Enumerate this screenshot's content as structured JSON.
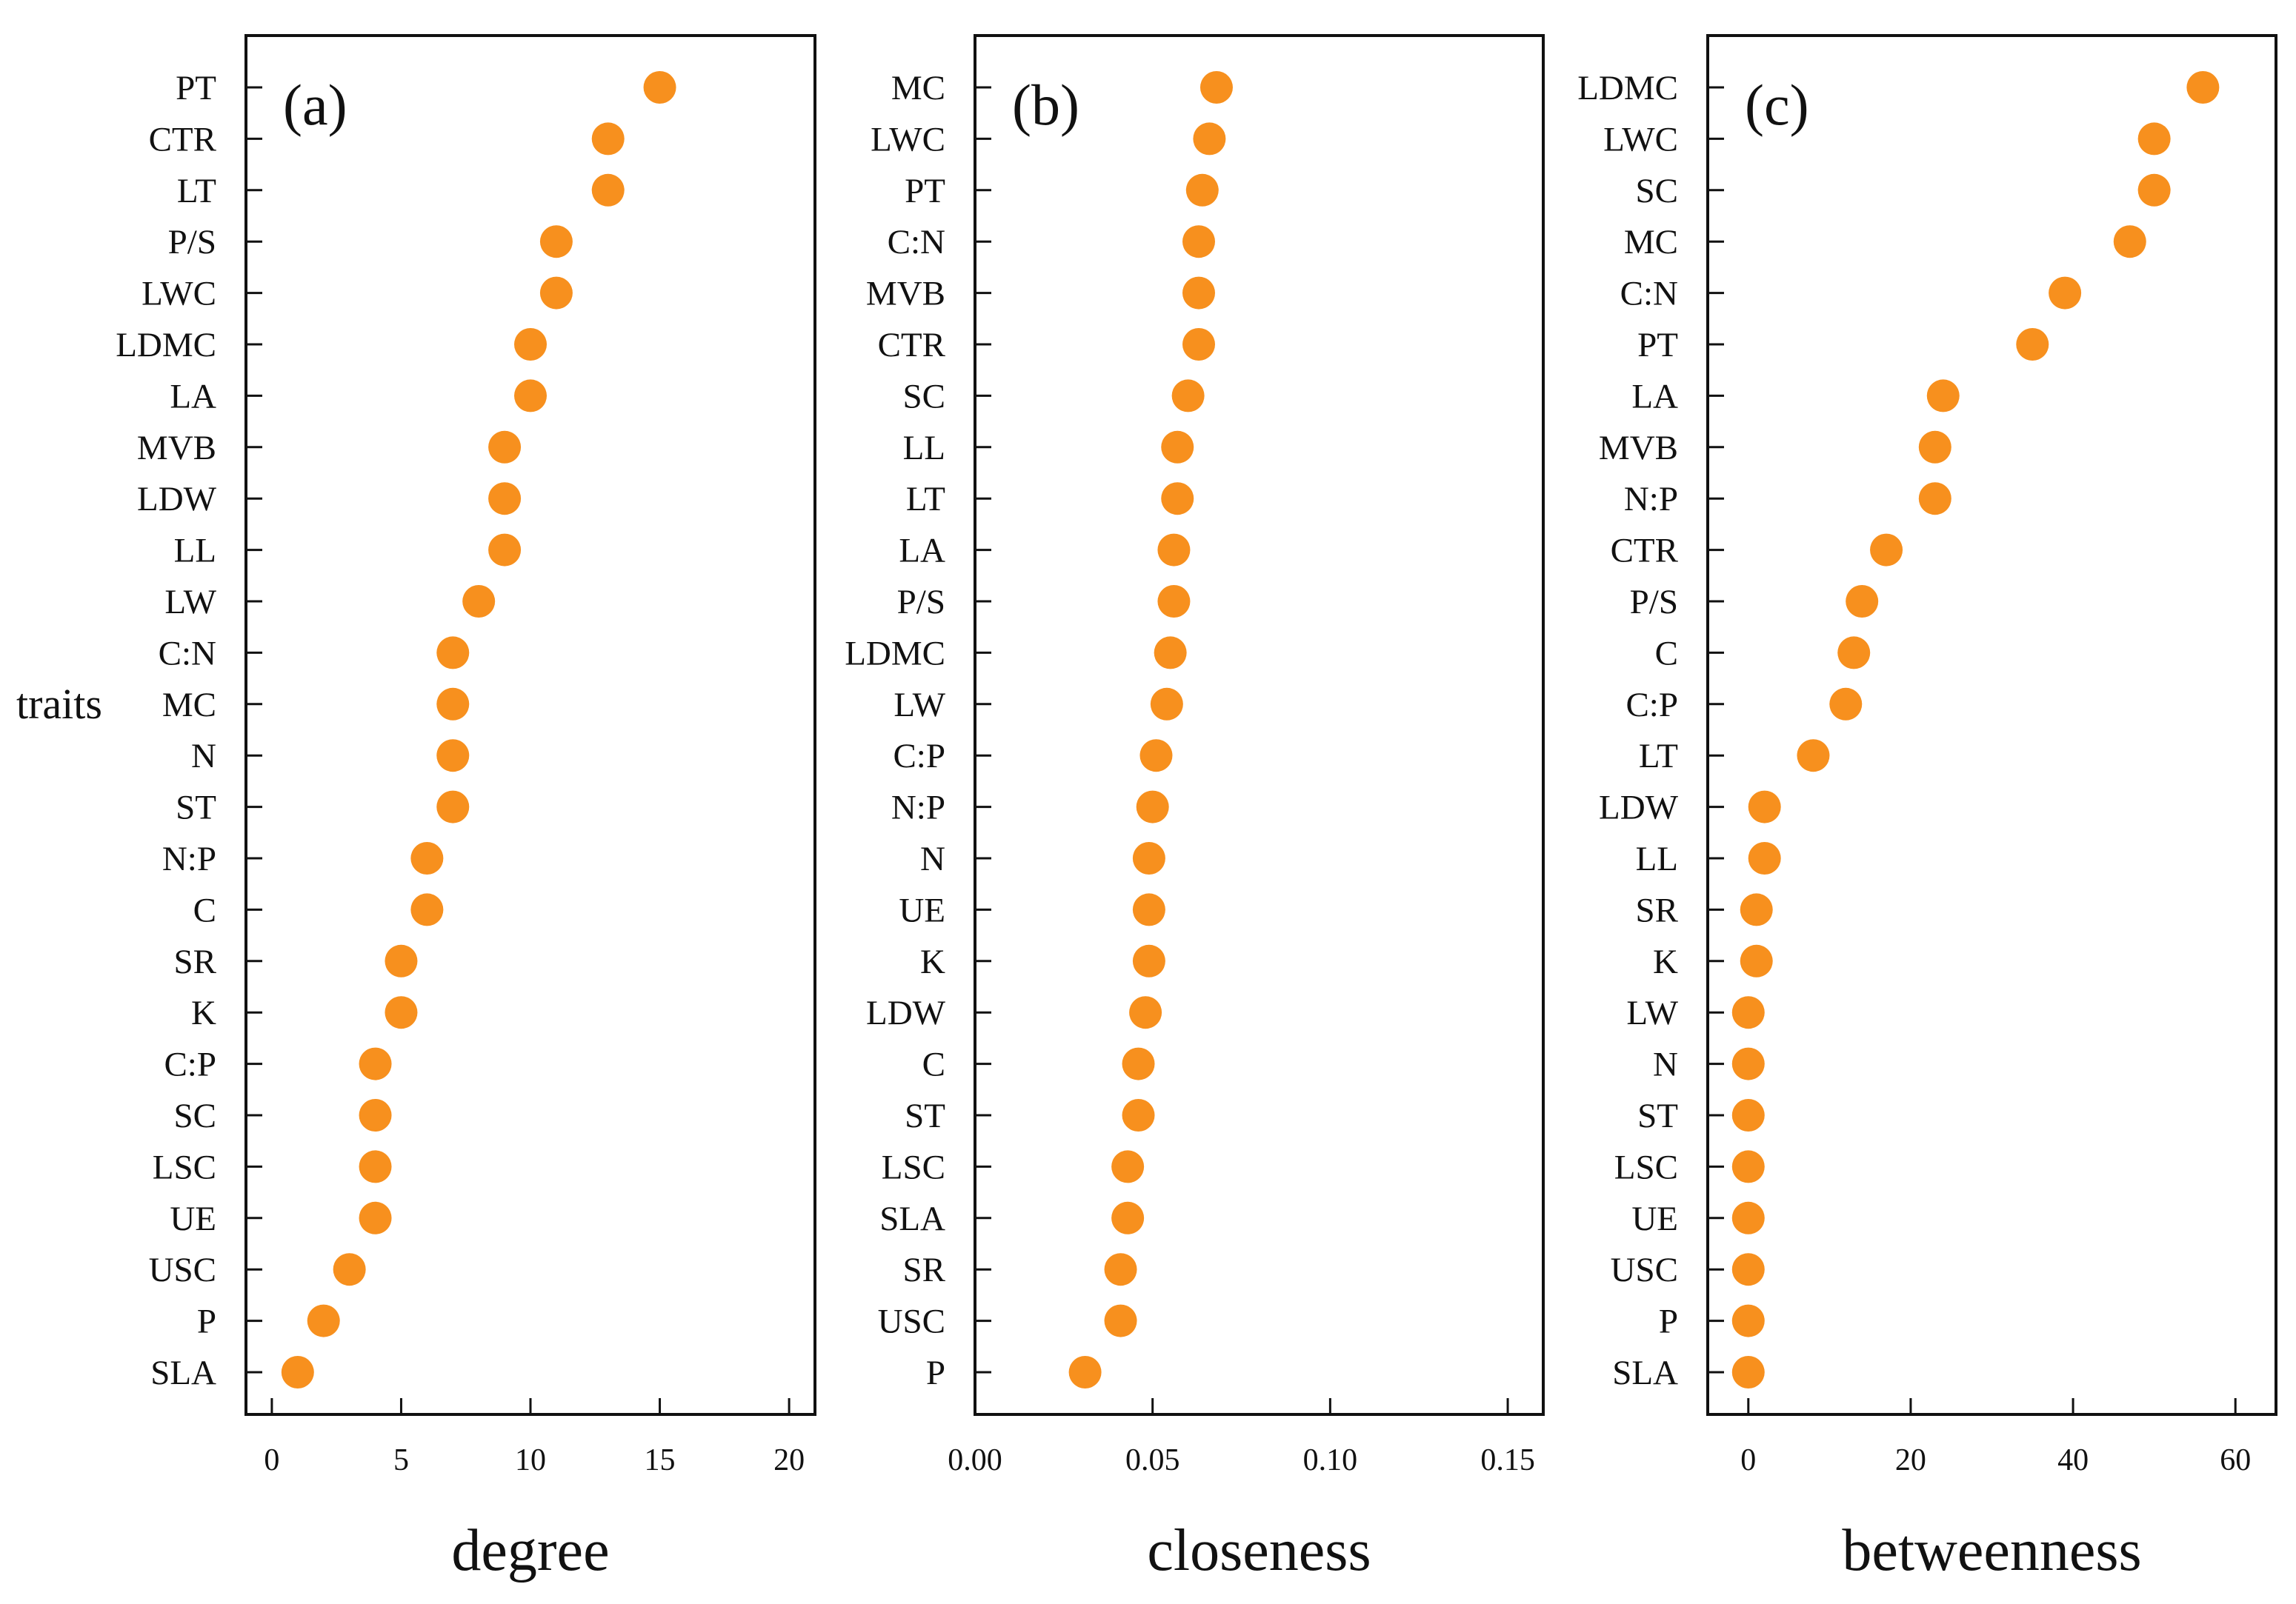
{
  "figure": {
    "y_axis_label": "traits"
  },
  "chart_data": [
    {
      "type": "scatter",
      "panel_label": "(a)",
      "xlabel": "degree",
      "ylabel": "traits",
      "xlim": [
        -1,
        21
      ],
      "xticks": [
        0,
        5,
        10,
        15,
        20
      ],
      "tick_labels": [
        "0",
        "5",
        "10",
        "15",
        "20"
      ],
      "marker_color": "#f7901e",
      "categories": [
        "PT",
        "CTR",
        "LT",
        "P/S",
        "LWC",
        "LDMC",
        "LA",
        "MVB",
        "LDW",
        "LL",
        "LW",
        "C:N",
        "MC",
        "N",
        "ST",
        "N:P",
        "C",
        "SR",
        "K",
        "C:P",
        "SC",
        "LSC",
        "UE",
        "USC",
        "P",
        "SLA"
      ],
      "values": [
        15,
        13,
        13,
        11,
        11,
        10,
        10,
        9,
        9,
        9,
        8,
        7,
        7,
        7,
        7,
        6,
        6,
        5,
        5,
        4,
        4,
        4,
        4,
        3,
        2,
        1
      ]
    },
    {
      "type": "scatter",
      "panel_label": "(b)",
      "xlabel": "closeness",
      "ylabel": "traits",
      "xlim": [
        0,
        0.16
      ],
      "xticks": [
        0,
        0.05,
        0.1,
        0.15
      ],
      "tick_labels": [
        "0.00",
        "0.05",
        "0.10",
        "0.15"
      ],
      "marker_color": "#f7901e",
      "categories": [
        "MC",
        "LWC",
        "PT",
        "C:N",
        "MVB",
        "CTR",
        "SC",
        "LL",
        "LT",
        "LA",
        "P/S",
        "LDMC",
        "LW",
        "C:P",
        "N:P",
        "N",
        "UE",
        "K",
        "LDW",
        "C",
        "ST",
        "LSC",
        "SLA",
        "SR",
        "USC",
        "P"
      ],
      "values": [
        0.068,
        0.066,
        0.064,
        0.063,
        0.063,
        0.063,
        0.06,
        0.057,
        0.057,
        0.056,
        0.056,
        0.055,
        0.054,
        0.051,
        0.05,
        0.049,
        0.049,
        0.049,
        0.048,
        0.046,
        0.046,
        0.043,
        0.043,
        0.041,
        0.041,
        0.031
      ]
    },
    {
      "type": "scatter",
      "panel_label": "(c)",
      "xlabel": "betweenness",
      "ylabel": "traits",
      "xlim": [
        -5,
        65
      ],
      "xticks": [
        0,
        20,
        40,
        60
      ],
      "tick_labels": [
        "0",
        "20",
        "40",
        "60"
      ],
      "marker_color": "#f7901e",
      "categories": [
        "LDMC",
        "LWC",
        "SC",
        "MC",
        "C:N",
        "PT",
        "LA",
        "MVB",
        "N:P",
        "CTR",
        "P/S",
        "C",
        "C:P",
        "LT",
        "LDW",
        "LL",
        "SR",
        "K",
        "LW",
        "N",
        "ST",
        "LSC",
        "UE",
        "USC",
        "P",
        "SLA"
      ],
      "values": [
        56,
        50,
        50,
        47,
        39,
        35,
        24,
        23,
        23,
        17,
        14,
        13,
        12,
        8,
        2,
        2,
        1,
        1,
        0,
        0,
        0,
        0,
        0,
        0,
        0,
        0
      ]
    }
  ]
}
